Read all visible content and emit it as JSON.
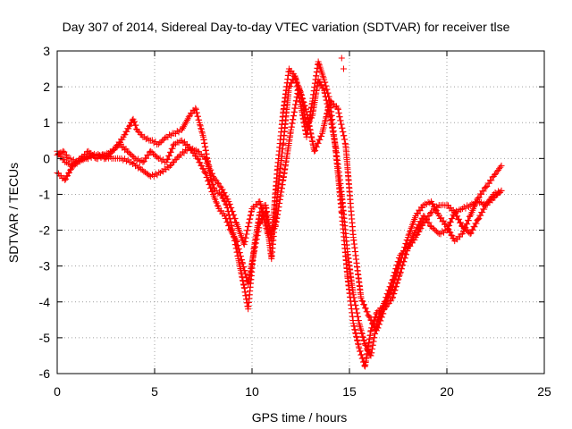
{
  "chart_data": {
    "type": "scatter",
    "title": "Day 307 of 2014, Sidereal Day-to-day VTEC variation (SDTVAR) for receiver tlse",
    "xlabel": "GPS time / hours",
    "ylabel": "SDTVAR / TECUs",
    "xlim": [
      0,
      25
    ],
    "ylim": [
      -6,
      3
    ],
    "xticks": [
      0,
      5,
      10,
      15,
      20,
      25
    ],
    "yticks": [
      -6,
      -5,
      -4,
      -3,
      -2,
      -1,
      0,
      1,
      2,
      3
    ],
    "grid": true,
    "legend": "none",
    "marker": "plus",
    "color": "#ff0000",
    "series": [
      {
        "x": [
          0.0,
          0.3,
          0.6,
          1.0,
          1.5,
          2.0,
          2.5,
          3.0,
          3.4,
          3.7,
          3.9,
          4.1,
          4.4,
          4.8,
          5.2,
          5.6,
          6.0,
          6.4,
          6.8,
          7.1,
          7.3,
          7.5,
          7.7,
          7.9,
          8.1,
          8.4,
          8.7,
          9.0,
          9.3,
          9.6,
          9.8,
          10.1,
          10.4,
          10.7,
          11.0,
          11.3,
          11.6,
          11.9,
          12.2,
          12.5,
          12.8,
          13.1,
          13.4,
          13.7,
          14.0,
          14.3,
          14.6,
          14.9,
          15.2,
          15.5,
          15.8,
          16.1,
          16.4,
          16.8,
          17.2,
          17.6,
          18.0,
          18.4,
          18.8,
          19.2,
          19.6,
          20.0,
          20.4,
          20.8,
          21.2,
          21.6,
          22.0,
          22.4,
          22.8
        ],
        "y": [
          0.1,
          0.2,
          0.0,
          -0.1,
          0.0,
          0.1,
          0.0,
          0.3,
          0.6,
          0.9,
          1.1,
          0.8,
          0.6,
          0.5,
          0.4,
          0.6,
          0.7,
          0.8,
          1.2,
          1.4,
          1.0,
          0.6,
          0.0,
          -0.6,
          -0.9,
          -1.0,
          -1.3,
          -2.0,
          -2.8,
          -3.6,
          -4.2,
          -2.5,
          -1.5,
          -1.3,
          -2.3,
          -0.3,
          1.3,
          2.5,
          2.3,
          1.5,
          0.6,
          1.6,
          2.7,
          2.2,
          1.6,
          0.2,
          -1.5,
          -3.3,
          -4.6,
          -5.3,
          -5.8,
          -4.8,
          -4.3,
          -4.1,
          -3.6,
          -2.9,
          -2.2,
          -1.6,
          -1.3,
          -1.2,
          -1.6,
          -1.9,
          -2.3,
          -2.1,
          -1.6,
          -1.1,
          -0.8,
          -0.5,
          -0.2
        ]
      },
      {
        "x": [
          0.0,
          0.4,
          0.8,
          1.3,
          1.8,
          2.3,
          2.8,
          3.3,
          3.8,
          4.3,
          4.8,
          5.3,
          5.8,
          6.3,
          6.8,
          7.2,
          7.6,
          8.0,
          8.3,
          8.6,
          8.9,
          9.2,
          9.5,
          9.8,
          10.1,
          10.4,
          10.7,
          11.0,
          11.3,
          11.6,
          11.9,
          12.2,
          12.5,
          12.8,
          13.1,
          13.4,
          13.7,
          14.0,
          14.3,
          14.6,
          14.9,
          15.2,
          15.5,
          15.8,
          16.1,
          16.4,
          16.8,
          17.2,
          17.6,
          18.0,
          18.4,
          18.8,
          19.2,
          19.6,
          20.0,
          20.4,
          20.8,
          21.2,
          21.6,
          22.0,
          22.4,
          22.8
        ],
        "y": [
          -0.4,
          -0.6,
          -0.2,
          0.0,
          0.1,
          0.1,
          0.0,
          0.0,
          -0.1,
          -0.3,
          -0.5,
          -0.4,
          -0.2,
          0.1,
          0.3,
          0.0,
          -0.4,
          -1.0,
          -1.4,
          -1.6,
          -2.0,
          -2.3,
          -2.9,
          -3.5,
          -2.6,
          -1.8,
          -1.5,
          -2.8,
          -1.0,
          0.4,
          2.0,
          2.3,
          1.8,
          0.9,
          1.2,
          2.2,
          1.9,
          1.2,
          0.3,
          -1.0,
          -2.6,
          -3.8,
          -4.6,
          -5.2,
          -5.5,
          -4.6,
          -4.0,
          -3.4,
          -2.7,
          -2.5,
          -2.2,
          -1.8,
          -1.5,
          -1.3,
          -1.3,
          -1.5,
          -1.9,
          -2.1,
          -1.7,
          -1.3,
          -1.0,
          -0.9
        ]
      },
      {
        "x": [
          0.0,
          0.4,
          0.8,
          1.2,
          1.6,
          2.0,
          2.4,
          2.8,
          3.2,
          3.6,
          4.0,
          4.4,
          4.8,
          5.2,
          5.6,
          6.0,
          6.4,
          6.8,
          7.2,
          7.6,
          8.0,
          8.4,
          8.8,
          9.2,
          9.6,
          10.0,
          10.4,
          10.8,
          11.2,
          11.6,
          12.0,
          12.4,
          12.8,
          13.2,
          13.6,
          14.0,
          14.4,
          14.8,
          15.2,
          15.6,
          16.0,
          16.4,
          16.8,
          17.2,
          17.6,
          18.0,
          18.4,
          18.8,
          19.2,
          19.6,
          20.0,
          20.4,
          20.8,
          21.2,
          21.6,
          22.0,
          22.4,
          22.8
        ],
        "y": [
          0.2,
          -0.1,
          -0.2,
          0.0,
          0.2,
          0.0,
          0.1,
          0.2,
          0.4,
          0.2,
          0.0,
          -0.1,
          0.2,
          0.0,
          -0.1,
          0.4,
          0.5,
          0.3,
          0.2,
          0.0,
          -0.5,
          -0.8,
          -1.2,
          -1.8,
          -2.4,
          -1.4,
          -1.2,
          -2.1,
          -1.9,
          -0.6,
          0.8,
          2.0,
          1.3,
          0.2,
          0.7,
          1.6,
          1.4,
          0.4,
          -2.2,
          -3.9,
          -4.4,
          -4.8,
          -4.2,
          -3.9,
          -3.2,
          -2.5,
          -2.0,
          -1.6,
          -1.9,
          -2.1,
          -2.0,
          -1.5,
          -1.4,
          -1.3,
          -1.2,
          -1.3,
          -1.1,
          -0.9
        ]
      }
    ],
    "annotations": [
      {
        "x": 14.6,
        "y": 2.8,
        "text": "+"
      },
      {
        "x": 14.7,
        "y": 2.5,
        "text": "+"
      }
    ]
  }
}
